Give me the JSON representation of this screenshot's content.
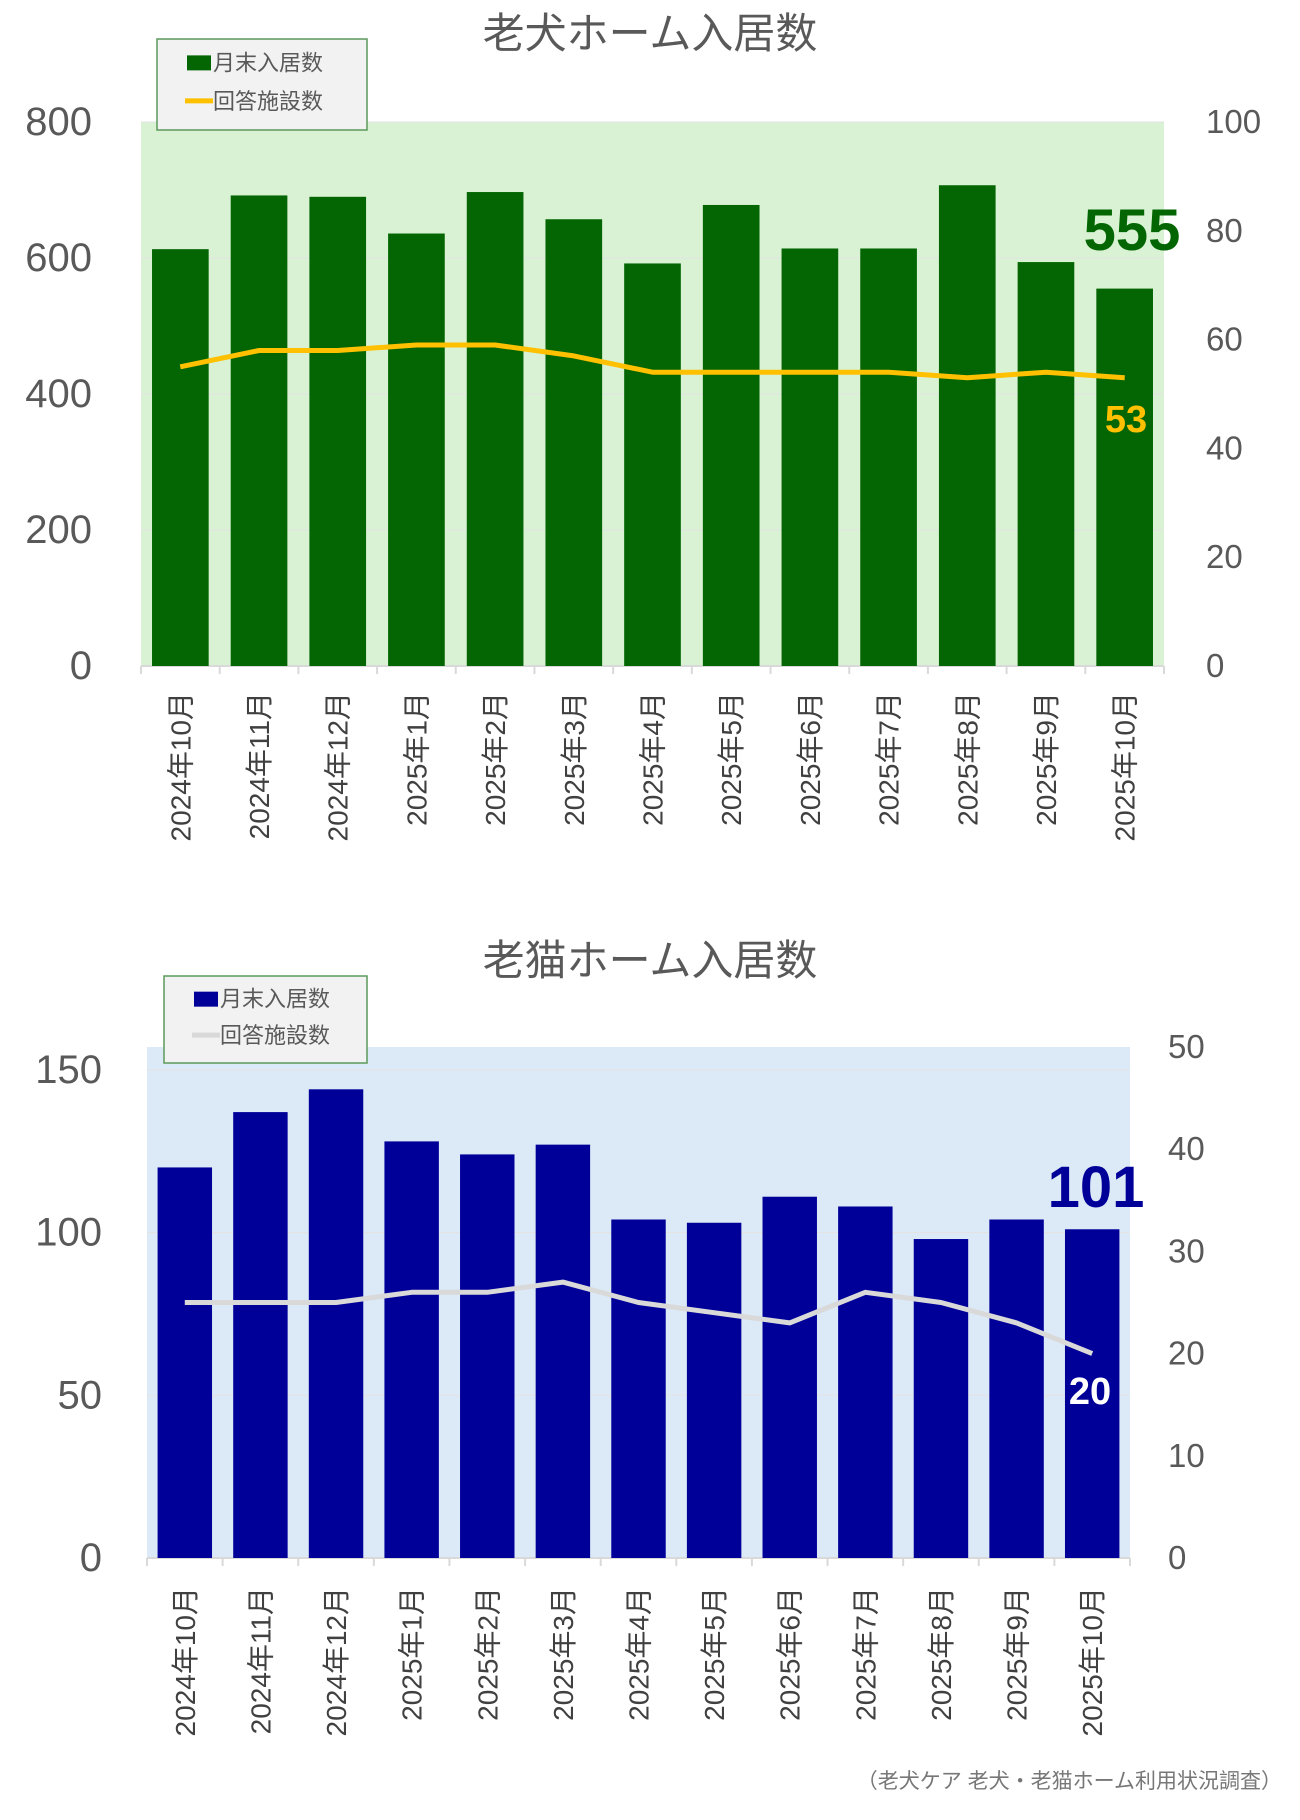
{
  "chart_data": [
    {
      "type": "bar+line",
      "title": "老犬ホーム入居数",
      "categories": [
        "2024年10月",
        "2024年11月",
        "2024年12月",
        "2025年1月",
        "2025年2月",
        "2025年3月",
        "2025年4月",
        "2025年5月",
        "2025年6月",
        "2025年7月",
        "2025年8月",
        "2025年9月",
        "2025年10月"
      ],
      "series": [
        {
          "name": "月末入居数",
          "type": "bar",
          "axis": "left",
          "color": "#036603",
          "values": [
            613,
            692,
            690,
            636,
            697,
            657,
            592,
            678,
            614,
            614,
            707,
            594,
            555
          ]
        },
        {
          "name": "回答施設数",
          "type": "line",
          "axis": "right",
          "color": "#ffc000",
          "values": [
            55,
            58,
            58,
            59,
            59,
            57,
            54,
            54,
            54,
            54,
            53,
            54,
            53
          ]
        }
      ],
      "ylim_left": [
        0,
        800
      ],
      "yticks_left": [
        "0",
        "200",
        "400",
        "600",
        "800"
      ],
      "ylim_right": [
        0,
        100
      ],
      "yticks_right": [
        "0",
        "20",
        "40",
        "60",
        "80",
        "100"
      ],
      "annotations": {
        "last_bar": "555",
        "last_line": "53"
      },
      "plot_bg": "#d9f2d3",
      "legend": "top-left",
      "grid": true
    },
    {
      "type": "bar+line",
      "title": "老猫ホーム入居数",
      "categories": [
        "2024年10月",
        "2024年11月",
        "2024年12月",
        "2025年1月",
        "2025年2月",
        "2025年3月",
        "2025年4月",
        "2025年5月",
        "2025年6月",
        "2025年7月",
        "2025年8月",
        "2025年9月",
        "2025年10月"
      ],
      "series": [
        {
          "name": "月末入居数",
          "type": "bar",
          "axis": "left",
          "color": "#000099",
          "values": [
            120,
            137,
            144,
            128,
            124,
            127,
            104,
            103,
            111,
            108,
            98,
            104,
            101
          ]
        },
        {
          "name": "回答施設数",
          "type": "line",
          "axis": "right",
          "color": "#d9d9d9",
          "values": [
            25,
            25,
            25,
            26,
            26,
            27,
            25,
            24,
            23,
            26,
            25,
            23,
            20
          ]
        }
      ],
      "ylim_left": [
        0,
        157
      ],
      "yticks_left": [
        "0",
        "50",
        "100",
        "150"
      ],
      "ylim_right": [
        0,
        50
      ],
      "yticks_right": [
        "0",
        "10",
        "20",
        "30",
        "40",
        "50"
      ],
      "annotations": {
        "last_bar": "101",
        "last_line": "20"
      },
      "plot_bg": "#dce9f6",
      "legend": "top-left",
      "grid": true
    }
  ],
  "source": "（老犬ケア 老犬・老猫ホーム利用状況調査）"
}
